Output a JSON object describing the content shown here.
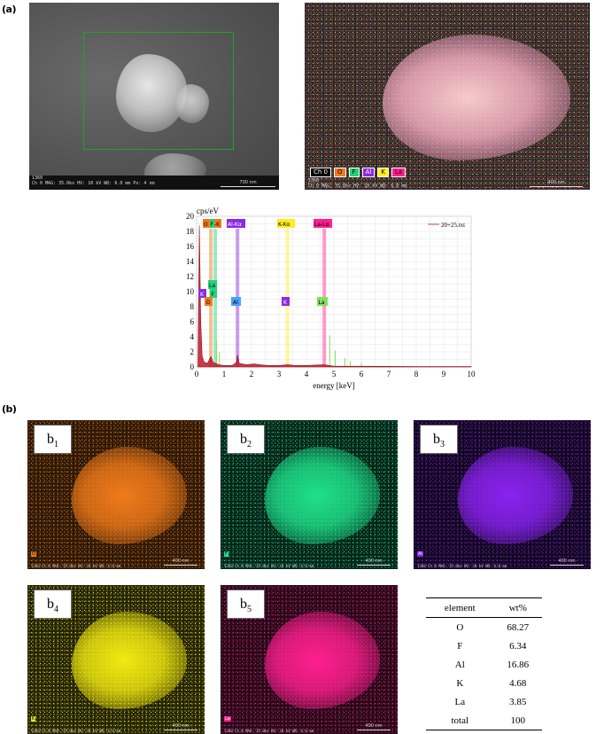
{
  "panel_a_label": "(a)",
  "panel_b_label": "(b)",
  "sem_image": {
    "title": "1360",
    "info": "Ch 0   MAG: 35.0kx   HV: 10 kV   WD: 6.0 mm   Px: 4 nm",
    "scale": "700 nm"
  },
  "overlay_image": {
    "title": "1360",
    "info": "Ch 0   MAG: 35.0kx   HV: 10 kV   WD: 6.0 mm",
    "scale": "400 nm",
    "legend": [
      {
        "label": "Ch 0",
        "color": "#000000",
        "text_color": "#ffffff"
      },
      {
        "label": "O",
        "color": "#f07a1a",
        "text_color": "#000000"
      },
      {
        "label": "F",
        "color": "#22d27a",
        "text_color": "#000000"
      },
      {
        "label": "Al",
        "color": "#8a2be2",
        "text_color": "#ffffff"
      },
      {
        "label": "K",
        "color": "#ffee22",
        "text_color": "#000000"
      },
      {
        "label": "La",
        "color": "#ff1f8f",
        "text_color": "#000000"
      }
    ]
  },
  "spectrum": {
    "y_axis_title": "cps/eV",
    "x_axis_title": "energy [keV]",
    "legend": "20+25.txt",
    "top_labels": [
      {
        "text": "O",
        "color": "#f07a1a"
      },
      {
        "text": "F",
        "color": "#22d27a"
      },
      {
        "text": "-K",
        "color": "#f07a1a"
      },
      {
        "text": "Al-Kα",
        "color": "#8a2be2"
      },
      {
        "text": "K-Kα",
        "color": "#ffee22"
      },
      {
        "text": "La-Lα",
        "color": "#ff1f8f"
      }
    ],
    "peak_labels": [
      {
        "text": "K",
        "color": "#8a2be2"
      },
      {
        "text": "La",
        "color": "#22d27a"
      },
      {
        "text": "F",
        "color": "#22d27a"
      },
      {
        "text": "O",
        "color": "#f07a1a"
      },
      {
        "text": "Al",
        "color": "#4aa0ff"
      },
      {
        "text": "K",
        "color": "#8a2be2"
      },
      {
        "text": "La",
        "color": "#22d27a"
      }
    ]
  },
  "chart_data": {
    "type": "line",
    "title": "",
    "xlabel": "energy [keV]",
    "ylabel": "cps/eV",
    "xlim": [
      0,
      10
    ],
    "ylim": [
      0,
      20
    ],
    "x_ticks": [
      0,
      1,
      2,
      3,
      4,
      5,
      6,
      7,
      8,
      9,
      10
    ],
    "y_ticks": [
      0,
      2,
      4,
      6,
      8,
      10,
      12,
      14,
      16,
      18,
      20
    ],
    "series": [
      {
        "name": "20+25.txt",
        "x": [
          0.05,
          0.1,
          0.15,
          0.2,
          0.25,
          0.3,
          0.4,
          0.52,
          0.6,
          0.68,
          0.8,
          1.0,
          1.3,
          1.45,
          1.49,
          1.55,
          1.8,
          2.1,
          2.3,
          2.6,
          3.0,
          3.31,
          3.6,
          4.0,
          4.65,
          5.0,
          6.0,
          8.0,
          10.0
        ],
        "y": [
          0.5,
          18.8,
          6.0,
          1.5,
          0.8,
          0.6,
          0.5,
          1.4,
          0.6,
          0.5,
          0.3,
          0.2,
          0.2,
          0.6,
          1.6,
          0.5,
          0.3,
          0.4,
          0.3,
          0.2,
          0.2,
          0.3,
          0.2,
          0.2,
          0.3,
          0.1,
          0.1,
          0.05,
          0.05
        ]
      }
    ],
    "element_lines_keV": [
      {
        "element": "O",
        "energy": 0.52
      },
      {
        "element": "F",
        "energy": 0.68
      },
      {
        "element": "Al",
        "energy": 1.49
      },
      {
        "element": "K",
        "energy": 3.31
      },
      {
        "element": "La",
        "energy": 4.65
      }
    ]
  },
  "maps": [
    {
      "sub": "1",
      "element": "O",
      "color": "#f07a1a",
      "bg": "#2e1a08",
      "info": "1360 Ch 0  MAG: 35.0kx  HV: 10 kV  WD: 6.0 mm",
      "scale": "400 nm"
    },
    {
      "sub": "2",
      "element": "F",
      "color": "#1fe08a",
      "bg": "#07251a",
      "info": "1360 Ch 0  MAG: 35.0kx  HV: 10 kV  WD: 6.0 mm",
      "scale": "400 nm"
    },
    {
      "sub": "3",
      "element": "Al",
      "color": "#8a22f0",
      "bg": "#12081f",
      "info": "1360 Ch 0  MAG: 35.0kx  HV: 10 kV  WD: 6.0 mm",
      "scale": "400 nm"
    },
    {
      "sub": "4",
      "element": "K",
      "color": "#f2ea10",
      "bg": "#26250a",
      "info": "1360 Ch 0  MAG: 35.0kx  HV: 10 kV  WD: 6.0 mm",
      "scale": "400 nm"
    },
    {
      "sub": "5",
      "element": "La",
      "color": "#ff1f8f",
      "bg": "#250a18",
      "info": "1360 Ch 0  MAG: 35.0kx  HV: 10 kV  WD: 6.0 mm",
      "scale": "400 nm"
    }
  ],
  "table": {
    "headers": [
      "element",
      "wt%"
    ],
    "rows": [
      [
        "O",
        "68.27"
      ],
      [
        "F",
        "6.34"
      ],
      [
        "Al",
        "16.86"
      ],
      [
        "K",
        "4.68"
      ],
      [
        "La",
        "3.85"
      ],
      [
        "total",
        "100"
      ]
    ]
  }
}
